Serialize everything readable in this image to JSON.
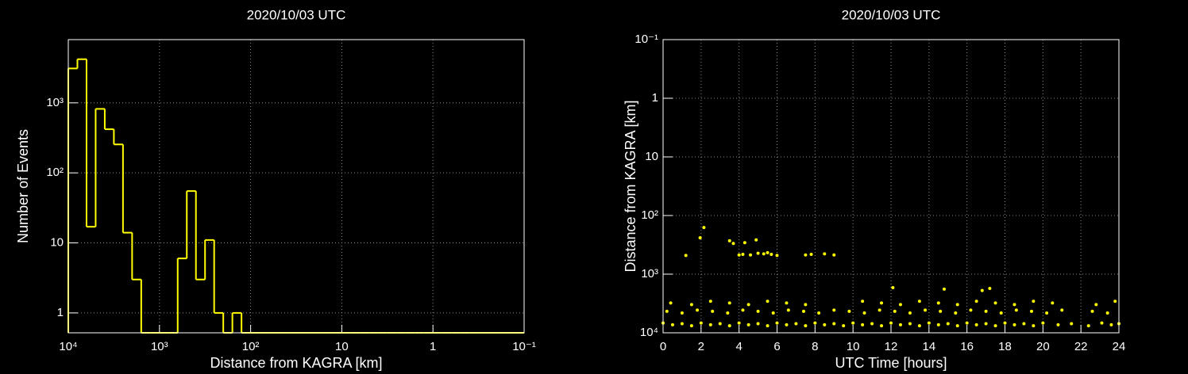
{
  "chart_data": [
    {
      "type": "histogram",
      "title": "2020/10/03 UTC",
      "x_label": "Distance from KAGRA [km]",
      "y_label": "Number of Events",
      "bins": [
        10000,
        7943.3,
        6309.6,
        5011.9,
        3981.1,
        3162.3,
        2511.9,
        1995.3,
        1584.9,
        1258.9,
        1000,
        794.3,
        631.0,
        501.2,
        398.1,
        316.2,
        251.2,
        199.5,
        158.5,
        125.9,
        100,
        79.43,
        63.1,
        50.12,
        39.81,
        31.62,
        25.12,
        19.95,
        15.85,
        12.59,
        10,
        7.943,
        6.31,
        5.012,
        3.981,
        3.162,
        2.512,
        1.995,
        1.585,
        1.259,
        1,
        0.7943,
        0.631,
        0.5012,
        0.3981,
        0.3162,
        0.2512,
        0.1995,
        0.1585,
        0.1259,
        0.1
      ],
      "values": [
        3100,
        4200,
        17,
        820,
        420,
        255,
        14,
        3,
        0,
        0,
        0,
        0,
        6,
        55,
        3,
        11,
        1,
        0,
        1,
        0,
        0,
        0,
        0,
        0,
        0,
        0,
        0,
        0,
        0,
        0,
        0,
        0,
        0,
        0,
        0,
        0,
        0,
        0,
        0,
        0,
        0,
        0,
        0,
        0,
        0,
        0,
        0,
        0,
        0,
        0
      ],
      "color": "#ffff00",
      "log_x": true,
      "log_y": true,
      "grid": true,
      "xlim": [
        10000,
        0.1
      ],
      "xticks": [
        {
          "value": 10000,
          "label": "10⁴"
        },
        {
          "value": 1000,
          "label": "10³"
        },
        {
          "value": 100,
          "label": "10²"
        },
        10,
        1,
        {
          "value": 0.1,
          "label": "10⁻¹"
        }
      ],
      "ylim": [
        0.52,
        8000
      ],
      "yticks": [
        1,
        10,
        {
          "value": 100,
          "label": "10²"
        },
        {
          "value": 1000,
          "label": "10³"
        }
      ]
    },
    {
      "type": "scatter",
      "title": "2020/10/03 UTC",
      "x_label": "UTC Time [hours]",
      "y_label": "Distance from KAGRA [km]",
      "x": [
        1.2,
        1.95,
        2.15,
        3.5,
        3.7,
        4.0,
        4.2,
        4.3,
        4.6,
        4.9,
        5.0,
        5.3,
        5.5,
        5.7,
        6.0,
        7.5,
        7.8,
        8.5,
        9.0,
        12.1,
        14.8,
        17.2,
        16.8,
        0,
        0.5,
        1,
        1.5,
        2,
        2.5,
        3,
        3.5,
        4,
        4.5,
        5,
        5.5,
        6,
        6.5,
        7,
        7.5,
        8,
        8.5,
        9,
        9.5,
        10,
        10.5,
        11,
        11.5,
        12,
        12.5,
        13,
        13.5,
        14,
        14.5,
        15,
        15.5,
        16,
        16.5,
        17,
        17.5,
        18,
        18.5,
        19,
        19.5,
        20,
        20.8,
        21.5,
        22.4,
        23.1,
        23.6,
        24,
        0.2,
        1.0,
        1.8,
        2.6,
        3.4,
        4.2,
        5.0,
        5.8,
        6.6,
        7.4,
        8.2,
        9.0,
        9.8,
        10.6,
        11.4,
        12.2,
        13.0,
        13.8,
        14.6,
        15.4,
        16.2,
        17.0,
        17.8,
        18.6,
        19.4,
        20.2,
        21.0,
        22.6,
        23.4,
        0.4,
        1.5,
        2.5,
        3.5,
        4.5,
        5.5,
        6.5,
        7.5,
        10.5,
        11.5,
        12.5,
        13.5,
        14.5,
        15.5,
        16.5,
        17.5,
        18.5,
        19.5,
        20.5,
        22.8,
        23.8
      ],
      "y": [
        480,
        240,
        160,
        270,
        300,
        470,
        460,
        290,
        470,
        260,
        440,
        450,
        430,
        460,
        480,
        470,
        460,
        450,
        470,
        1700,
        1800,
        1750,
        1900,
        6800,
        7300,
        7000,
        7600,
        6800,
        7300,
        7000,
        7600,
        6800,
        7300,
        7000,
        7600,
        6800,
        7300,
        7000,
        7600,
        6800,
        7300,
        7000,
        7600,
        6800,
        7300,
        7000,
        7600,
        6800,
        7300,
        7000,
        7600,
        6800,
        7300,
        7000,
        7600,
        6800,
        7300,
        7000,
        7600,
        6800,
        7300,
        7000,
        7600,
        6800,
        7300,
        7000,
        7600,
        6800,
        7300,
        7000,
        4300,
        4600,
        4100,
        4300,
        4600,
        4100,
        4300,
        4600,
        4100,
        4300,
        4600,
        4100,
        4300,
        4600,
        4100,
        4300,
        4600,
        4100,
        4300,
        4600,
        4100,
        4300,
        4600,
        4100,
        4300,
        4600,
        4100,
        4300,
        4600,
        3100,
        3300,
        2900,
        3100,
        3300,
        2900,
        3100,
        3300,
        2900,
        3100,
        3300,
        2900,
        3100,
        3300,
        2900,
        3100,
        3300,
        2900,
        3100,
        3300,
        2900
      ],
      "color": "#ffff00",
      "log_x": false,
      "log_y": true,
      "grid": true,
      "xlim": [
        0,
        24
      ],
      "xticks": [
        0,
        2,
        4,
        6,
        8,
        10,
        12,
        14,
        16,
        18,
        20,
        22,
        24
      ],
      "ylim": [
        10000,
        0.1
      ],
      "yticks": [
        {
          "value": 10000,
          "label": "10⁴"
        },
        {
          "value": 1000,
          "label": "10³"
        },
        {
          "value": 100,
          "label": "10²"
        },
        10,
        1,
        {
          "value": 0.1,
          "label": "10⁻¹"
        }
      ]
    }
  ]
}
